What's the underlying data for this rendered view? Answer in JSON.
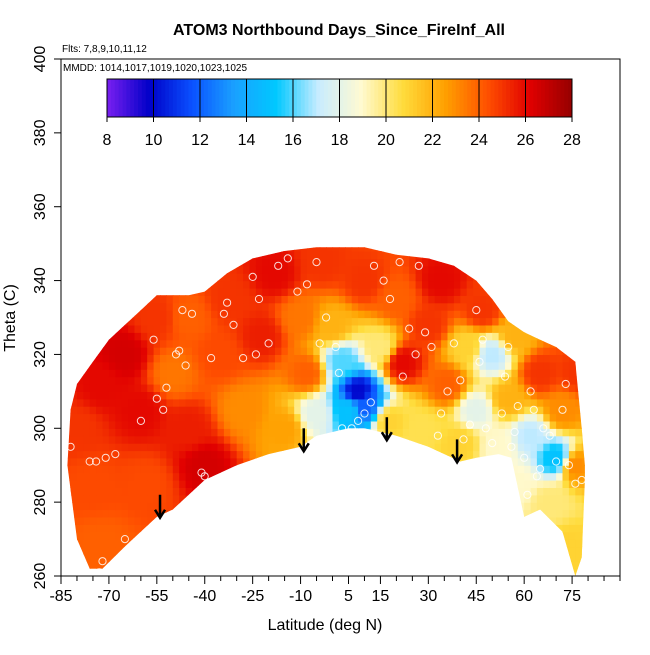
{
  "chart_data": {
    "type": "heatmap",
    "title": "ATOM3 Northbound Days_Since_FireInf_All",
    "subtitle_flights": "Flts: 7,8,9,10,11,12",
    "subtitle_dates": "MMDD: 1014,1017,1019,1020,1023,1025",
    "xlabel": "Latitude (deg N)",
    "ylabel": "Theta (C)",
    "xlim": [
      -85,
      90
    ],
    "ylim": [
      260,
      400
    ],
    "x_ticks": [
      -85,
      -70,
      -55,
      -40,
      -25,
      -10,
      5,
      15,
      30,
      45,
      60,
      75
    ],
    "x_minor_ticks": [
      -80,
      -75,
      -65,
      -60,
      -50,
      -45,
      -35,
      -30,
      -20,
      -15,
      -5,
      0,
      10,
      20,
      25,
      35,
      40,
      50,
      55,
      65,
      70,
      80,
      85,
      90
    ],
    "y_ticks": [
      260,
      280,
      300,
      320,
      340,
      360,
      380,
      400
    ],
    "colorbar": {
      "min": 8,
      "max": 28,
      "ticks": [
        8,
        10,
        12,
        14,
        16,
        18,
        20,
        22,
        24,
        26,
        28
      ],
      "colors": [
        "#7a1ff0",
        "#0000c8",
        "#0a50ff",
        "#1aa0ff",
        "#00c8ff",
        "#c8ecff",
        "#fffad2",
        "#ffdc3c",
        "#ffa000",
        "#ff5000",
        "#e10000",
        "#960000"
      ]
    },
    "tropopause_markers_lat": [
      -54,
      -9,
      17,
      39
    ],
    "domain_upper": [
      [
        -82,
        305
      ],
      [
        -80,
        312
      ],
      [
        -75,
        318
      ],
      [
        -70,
        324
      ],
      [
        -65,
        328
      ],
      [
        -60,
        332
      ],
      [
        -55,
        336
      ],
      [
        -45,
        336
      ],
      [
        -40,
        337
      ],
      [
        -33,
        342
      ],
      [
        -25,
        346
      ],
      [
        -15,
        348
      ],
      [
        -5,
        349
      ],
      [
        10,
        349
      ],
      [
        20,
        347
      ],
      [
        30,
        346
      ],
      [
        38,
        344
      ],
      [
        45,
        340
      ],
      [
        50,
        335
      ],
      [
        55,
        329
      ],
      [
        60,
        326
      ],
      [
        65,
        324
      ],
      [
        70,
        322
      ],
      [
        76,
        318
      ],
      [
        78,
        300
      ],
      [
        79,
        290
      ],
      [
        79,
        286
      ]
    ],
    "domain_lower": [
      [
        79,
        286
      ],
      [
        78,
        265
      ],
      [
        76,
        260
      ],
      [
        72,
        272
      ],
      [
        65,
        278
      ],
      [
        60,
        276
      ],
      [
        56,
        292
      ],
      [
        52,
        293
      ],
      [
        45,
        292
      ],
      [
        40,
        291
      ],
      [
        30,
        295
      ],
      [
        20,
        298
      ],
      [
        10,
        300
      ],
      [
        5,
        300
      ],
      [
        -5,
        298
      ],
      [
        -10,
        295
      ],
      [
        -20,
        293
      ],
      [
        -30,
        290
      ],
      [
        -40,
        286
      ],
      [
        -50,
        278
      ],
      [
        -55,
        276
      ],
      [
        -65,
        268
      ],
      [
        -72,
        262
      ],
      [
        -76,
        262
      ],
      [
        -80,
        270
      ],
      [
        -83,
        290
      ],
      [
        -82,
        305
      ]
    ],
    "field_points": [
      {
        "lat": -80,
        "theta": 300,
        "value": 25
      },
      {
        "lat": -75,
        "theta": 285,
        "value": 24.5
      },
      {
        "lat": -72,
        "theta": 268,
        "value": 24
      },
      {
        "lat": -72,
        "theta": 312,
        "value": 26
      },
      {
        "lat": -65,
        "theta": 320,
        "value": 26.5
      },
      {
        "lat": -60,
        "theta": 305,
        "value": 26
      },
      {
        "lat": -58,
        "theta": 285,
        "value": 24.5
      },
      {
        "lat": -55,
        "theta": 330,
        "value": 25
      },
      {
        "lat": -50,
        "theta": 315,
        "value": 23.5
      },
      {
        "lat": -45,
        "theta": 300,
        "value": 25.5
      },
      {
        "lat": -45,
        "theta": 330,
        "value": 24
      },
      {
        "lat": -40,
        "theta": 290,
        "value": 26.5
      },
      {
        "lat": -35,
        "theta": 320,
        "value": 24.5
      },
      {
        "lat": -32,
        "theta": 335,
        "value": 25
      },
      {
        "lat": -28,
        "theta": 305,
        "value": 23
      },
      {
        "lat": -22,
        "theta": 325,
        "value": 25.5
      },
      {
        "lat": -18,
        "theta": 342,
        "value": 26
      },
      {
        "lat": -15,
        "theta": 300,
        "value": 22.5
      },
      {
        "lat": -10,
        "theta": 330,
        "value": 23.5
      },
      {
        "lat": -8,
        "theta": 315,
        "value": 24
      },
      {
        "lat": -5,
        "theta": 304,
        "value": 18
      },
      {
        "lat": -3,
        "theta": 345,
        "value": 25
      },
      {
        "lat": 0,
        "theta": 328,
        "value": 22
      },
      {
        "lat": 3,
        "theta": 318,
        "value": 16
      },
      {
        "lat": 5,
        "theta": 305,
        "value": 15
      },
      {
        "lat": 8,
        "theta": 310,
        "value": 10
      },
      {
        "lat": 10,
        "theta": 306,
        "value": 12
      },
      {
        "lat": 10,
        "theta": 340,
        "value": 25
      },
      {
        "lat": 15,
        "theta": 322,
        "value": 20
      },
      {
        "lat": 18,
        "theta": 302,
        "value": 21
      },
      {
        "lat": 20,
        "theta": 335,
        "value": 24
      },
      {
        "lat": 22,
        "theta": 318,
        "value": 26
      },
      {
        "lat": 28,
        "theta": 300,
        "value": 20.5
      },
      {
        "lat": 30,
        "theta": 328,
        "value": 25
      },
      {
        "lat": 34,
        "theta": 340,
        "value": 26
      },
      {
        "lat": 36,
        "theta": 312,
        "value": 24
      },
      {
        "lat": 40,
        "theta": 296,
        "value": 21
      },
      {
        "lat": 42,
        "theta": 322,
        "value": 21
      },
      {
        "lat": 45,
        "theta": 305,
        "value": 18
      },
      {
        "lat": 47,
        "theta": 332,
        "value": 25
      },
      {
        "lat": 50,
        "theta": 320,
        "value": 17
      },
      {
        "lat": 52,
        "theta": 295,
        "value": 19
      },
      {
        "lat": 55,
        "theta": 308,
        "value": 22
      },
      {
        "lat": 57,
        "theta": 325,
        "value": 22
      },
      {
        "lat": 58,
        "theta": 285,
        "value": 19
      },
      {
        "lat": 62,
        "theta": 298,
        "value": 17
      },
      {
        "lat": 65,
        "theta": 315,
        "value": 25
      },
      {
        "lat": 68,
        "theta": 280,
        "value": 20
      },
      {
        "lat": 70,
        "theta": 292,
        "value": 15
      },
      {
        "lat": 72,
        "theta": 305,
        "value": 23
      },
      {
        "lat": 74,
        "theta": 268,
        "value": 21
      },
      {
        "lat": 76,
        "theta": 290,
        "value": 23
      },
      {
        "lat": 77,
        "theta": 315,
        "value": 25
      }
    ],
    "sample_points": [
      [
        -82,
        311
      ],
      [
        -82,
        295
      ],
      [
        -76,
        291
      ],
      [
        -74,
        291
      ],
      [
        -73,
        261
      ],
      [
        -72,
        264
      ],
      [
        -71,
        292
      ],
      [
        -68,
        293
      ],
      [
        -65,
        270
      ],
      [
        -60,
        302
      ],
      [
        -56,
        324
      ],
      [
        -55,
        308
      ],
      [
        -53,
        305
      ],
      [
        -52,
        311
      ],
      [
        -49,
        320
      ],
      [
        -48,
        321
      ],
      [
        -47,
        332
      ],
      [
        -46,
        317
      ],
      [
        -44,
        331
      ],
      [
        -41,
        288
      ],
      [
        -40,
        287
      ],
      [
        -38,
        319
      ],
      [
        -34,
        331
      ],
      [
        -33,
        334
      ],
      [
        -31,
        328
      ],
      [
        -28,
        319
      ],
      [
        -25,
        341
      ],
      [
        -24,
        320
      ],
      [
        -23,
        335
      ],
      [
        -20,
        323
      ],
      [
        -17,
        344
      ],
      [
        -14,
        346
      ],
      [
        -11,
        337
      ],
      [
        -8,
        339
      ],
      [
        -5,
        345
      ],
      [
        -4,
        323
      ],
      [
        -2,
        330
      ],
      [
        1,
        322
      ],
      [
        2,
        315
      ],
      [
        3,
        300
      ],
      [
        6,
        300
      ],
      [
        8,
        302
      ],
      [
        10,
        304
      ],
      [
        12,
        307
      ],
      [
        13,
        344
      ],
      [
        16,
        340
      ],
      [
        18,
        335
      ],
      [
        21,
        345
      ],
      [
        22,
        314
      ],
      [
        24,
        327
      ],
      [
        26,
        320
      ],
      [
        27,
        344
      ],
      [
        29,
        326
      ],
      [
        31,
        322
      ],
      [
        33,
        298
      ],
      [
        34,
        304
      ],
      [
        36,
        310
      ],
      [
        38,
        323
      ],
      [
        40,
        313
      ],
      [
        41,
        297
      ],
      [
        43,
        301
      ],
      [
        45,
        332
      ],
      [
        46,
        318
      ],
      [
        47,
        324
      ],
      [
        48,
        300
      ],
      [
        50,
        296
      ],
      [
        51,
        286
      ],
      [
        53,
        304
      ],
      [
        54,
        314
      ],
      [
        55,
        322
      ],
      [
        56,
        295
      ],
      [
        57,
        299
      ],
      [
        58,
        306
      ],
      [
        60,
        292
      ],
      [
        61,
        282
      ],
      [
        62,
        310
      ],
      [
        63,
        305
      ],
      [
        64,
        287
      ],
      [
        65,
        289
      ],
      [
        66,
        300
      ],
      [
        68,
        298
      ],
      [
        70,
        291
      ],
      [
        72,
        305
      ],
      [
        73,
        312
      ],
      [
        74,
        290
      ],
      [
        76,
        285
      ],
      [
        77,
        319
      ],
      [
        78,
        286
      ]
    ]
  }
}
